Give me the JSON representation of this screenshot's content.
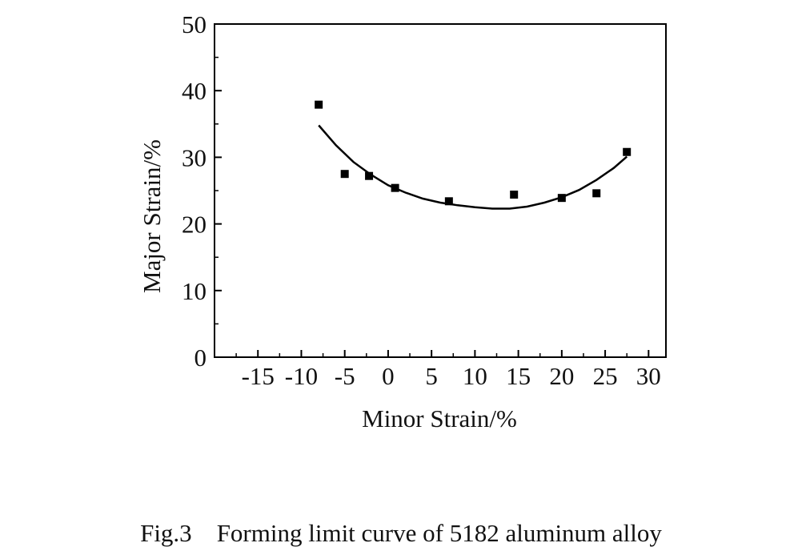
{
  "caption": {
    "fig_label": "Fig.3",
    "text": "Forming limit curve of 5182 aluminum alloy"
  },
  "chart_data": {
    "type": "scatter",
    "xlabel": "Minor Strain/%",
    "ylabel": "Major Strain/%",
    "xlim": [
      -20,
      32
    ],
    "ylim": [
      0,
      50
    ],
    "x_ticks": [
      -15,
      -10,
      -5,
      0,
      5,
      10,
      15,
      20,
      25,
      30
    ],
    "x_tick_labels": [
      "-15",
      "-10",
      "-5",
      "0",
      "5",
      "10",
      "15",
      "20",
      "25",
      "30"
    ],
    "y_ticks": [
      0,
      10,
      20,
      30,
      40,
      50
    ],
    "y_tick_labels": [
      "0",
      "10",
      "20",
      "30",
      "40",
      "50"
    ],
    "grid": false,
    "marker_color": "#000000",
    "points": [
      {
        "x": -8.0,
        "y": 37.9
      },
      {
        "x": -5.0,
        "y": 27.5
      },
      {
        "x": -2.2,
        "y": 27.2
      },
      {
        "x": 0.8,
        "y": 25.4
      },
      {
        "x": 7.0,
        "y": 23.4
      },
      {
        "x": 14.5,
        "y": 24.4
      },
      {
        "x": 20.0,
        "y": 23.9
      },
      {
        "x": 24.0,
        "y": 24.6
      },
      {
        "x": 27.5,
        "y": 30.8
      }
    ],
    "fit_curve": {
      "x": [
        -8,
        -6,
        -4,
        -2,
        0,
        2,
        4,
        6,
        8,
        10,
        12,
        14,
        16,
        18,
        20,
        22,
        24,
        26,
        27.5
      ],
      "y": [
        34.8,
        31.8,
        29.3,
        27.4,
        25.8,
        24.7,
        23.8,
        23.2,
        22.8,
        22.5,
        22.3,
        22.3,
        22.6,
        23.2,
        24.0,
        25.1,
        26.6,
        28.4,
        30.1
      ]
    }
  }
}
